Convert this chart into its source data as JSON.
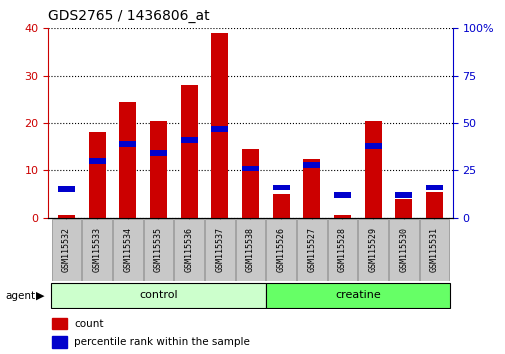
{
  "title": "GDS2765 / 1436806_at",
  "samples": [
    "GSM115532",
    "GSM115533",
    "GSM115534",
    "GSM115535",
    "GSM115536",
    "GSM115537",
    "GSM115538",
    "GSM115526",
    "GSM115527",
    "GSM115528",
    "GSM115529",
    "GSM115530",
    "GSM115531"
  ],
  "count_values": [
    0.5,
    18,
    24.5,
    20.5,
    28,
    39,
    14.5,
    5,
    12.5,
    0.5,
    20.5,
    4,
    5.5
  ],
  "percentile_values": [
    15,
    30,
    39,
    34,
    41,
    47,
    26,
    16,
    28,
    12,
    38,
    12,
    16
  ],
  "count_color": "#cc0000",
  "percentile_color": "#0000cc",
  "bar_width": 0.55,
  "ylim_left": [
    0,
    40
  ],
  "ylim_right": [
    0,
    100
  ],
  "yticks_left": [
    0,
    10,
    20,
    30,
    40
  ],
  "yticks_right": [
    0,
    25,
    50,
    75,
    100
  ],
  "n_control": 7,
  "n_creatine": 6,
  "control_color": "#ccffcc",
  "creatine_color": "#66ff66",
  "agent_label": "agent",
  "control_label": "control",
  "creatine_label": "creatine",
  "legend_count": "count",
  "legend_percentile": "percentile rank within the sample",
  "bg_color": "#ffffff",
  "tick_area_color": "#c8c8c8"
}
